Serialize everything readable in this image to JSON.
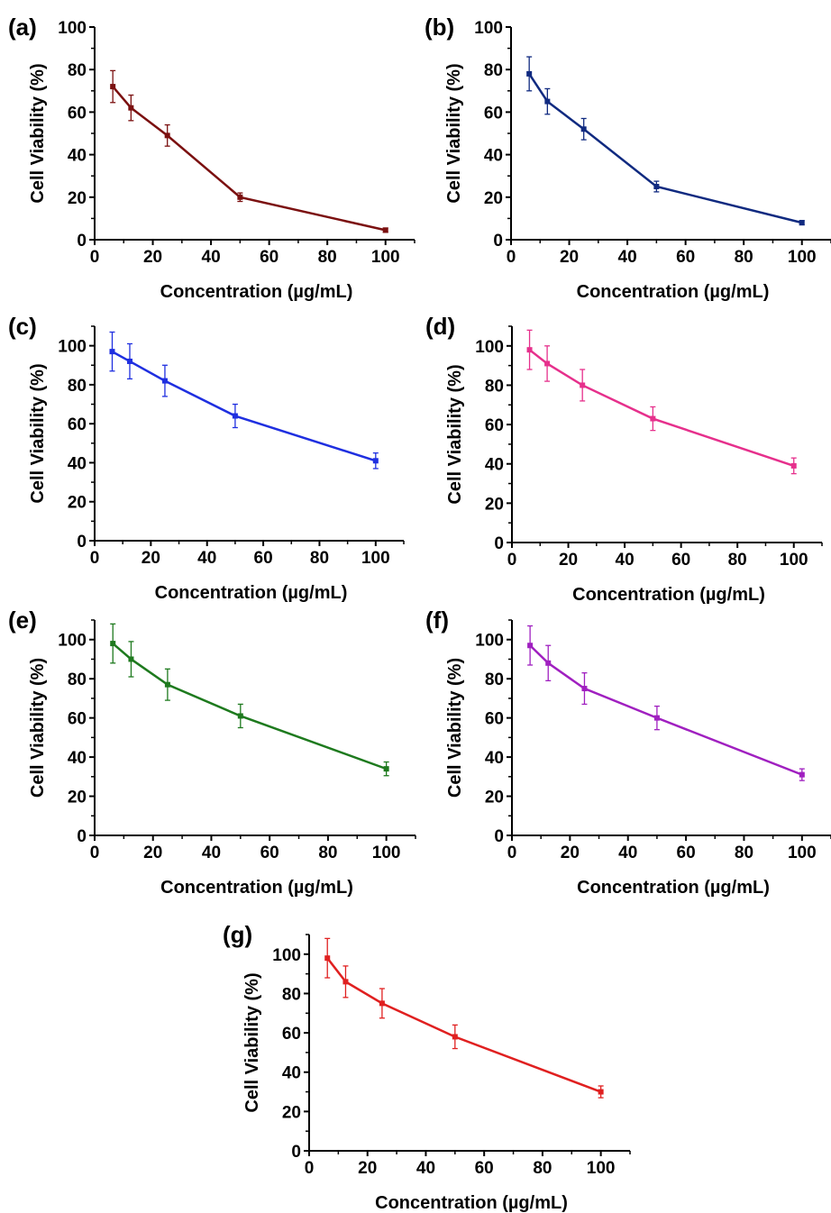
{
  "chart_data": [
    {
      "type": "line",
      "panel_label": "(a)",
      "color": "#7B1010",
      "xlabel": "Concentration (µg/mL)",
      "ylabel": "Cell Viability (%)",
      "xlim": [
        0,
        110
      ],
      "ylim": [
        0,
        100
      ],
      "xticks": [
        0,
        20,
        40,
        60,
        80,
        100
      ],
      "yticks": [
        0,
        20,
        40,
        60,
        80,
        100
      ],
      "x": [
        6.25,
        12.5,
        25,
        50,
        100
      ],
      "y": [
        72,
        62,
        49,
        20,
        4.5
      ],
      "error": [
        7.5,
        6,
        5,
        2,
        1
      ],
      "legend": "none"
    },
    {
      "type": "line",
      "panel_label": "(b)",
      "color": "#102A80",
      "xlabel": "Concentration (µg/mL)",
      "ylabel": "Cell Viability (%)",
      "xlim": [
        0,
        110
      ],
      "ylim": [
        0,
        100
      ],
      "xticks": [
        0,
        20,
        40,
        60,
        80,
        100
      ],
      "yticks": [
        0,
        20,
        40,
        60,
        80,
        100
      ],
      "x": [
        6.25,
        12.5,
        25,
        50,
        100
      ],
      "y": [
        78,
        65,
        52,
        25,
        8
      ],
      "error": [
        8,
        6,
        5,
        2.5,
        1
      ],
      "legend": "none"
    },
    {
      "type": "line",
      "panel_label": "(c)",
      "color": "#1F2FE0",
      "xlabel": "Concentration (µg/mL)",
      "ylabel": "Cell Viability (%)",
      "xlim": [
        0,
        110
      ],
      "ylim": [
        0,
        110
      ],
      "xticks": [
        0,
        20,
        40,
        60,
        80,
        100
      ],
      "yticks": [
        0,
        20,
        40,
        60,
        80,
        100
      ],
      "x": [
        6.25,
        12.5,
        25,
        50,
        100
      ],
      "y": [
        97,
        92,
        82,
        64,
        41
      ],
      "error": [
        10,
        9,
        8,
        6,
        4
      ],
      "legend": "none"
    },
    {
      "type": "line",
      "panel_label": "(d)",
      "color": "#E6308C",
      "xlabel": "Concentration (µg/mL)",
      "ylabel": "Cell Viability (%)",
      "xlim": [
        0,
        110
      ],
      "ylim": [
        0,
        110
      ],
      "xticks": [
        0,
        20,
        40,
        60,
        80,
        100
      ],
      "yticks": [
        0,
        20,
        40,
        60,
        80,
        100
      ],
      "x": [
        6.25,
        12.5,
        25,
        50,
        100
      ],
      "y": [
        98,
        91,
        80,
        63,
        39
      ],
      "error": [
        10,
        9,
        8,
        6,
        4
      ],
      "legend": "none"
    },
    {
      "type": "line",
      "panel_label": "(e)",
      "color": "#1E7A1E",
      "xlabel": "Concentration (µg/mL)",
      "ylabel": "Cell Viability (%)",
      "xlim": [
        0,
        110
      ],
      "ylim": [
        0,
        110
      ],
      "xticks": [
        0,
        20,
        40,
        60,
        80,
        100
      ],
      "yticks": [
        0,
        20,
        40,
        60,
        80,
        100
      ],
      "x": [
        6.25,
        12.5,
        25,
        50,
        100
      ],
      "y": [
        98,
        90,
        77,
        61,
        34
      ],
      "error": [
        10,
        9,
        8,
        6,
        3.5
      ],
      "legend": "none"
    },
    {
      "type": "line",
      "panel_label": "(f)",
      "color": "#A020C0",
      "xlabel": "Concentration (µg/mL)",
      "ylabel": "Cell Viability (%)",
      "xlim": [
        0,
        110
      ],
      "ylim": [
        0,
        110
      ],
      "xticks": [
        0,
        20,
        40,
        60,
        80,
        100
      ],
      "yticks": [
        0,
        20,
        40,
        60,
        80,
        100
      ],
      "x": [
        6.25,
        12.5,
        25,
        50,
        100
      ],
      "y": [
        97,
        88,
        75,
        60,
        31
      ],
      "error": [
        10,
        9,
        8,
        6,
        3
      ],
      "legend": "none"
    },
    {
      "type": "line",
      "panel_label": "(g)",
      "color": "#E02020",
      "xlabel": "Concentration (µg/mL)",
      "ylabel": "Cell Viability (%)",
      "xlim": [
        0,
        110
      ],
      "ylim": [
        0,
        110
      ],
      "xticks": [
        0,
        20,
        40,
        60,
        80,
        100
      ],
      "yticks": [
        0,
        20,
        40,
        60,
        80,
        100
      ],
      "x": [
        6.25,
        12.5,
        25,
        50,
        100
      ],
      "y": [
        98,
        86,
        75,
        58,
        30
      ],
      "error": [
        10,
        8,
        7.5,
        6,
        3
      ],
      "legend": "none"
    }
  ]
}
